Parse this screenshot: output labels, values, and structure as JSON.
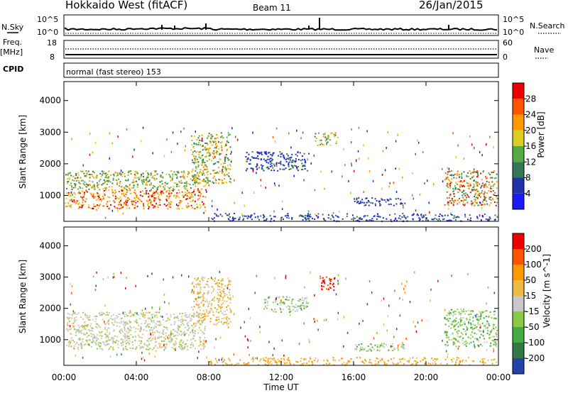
{
  "header": {
    "station": "Hokkaido West (fitACF)",
    "beam": "Beam 11",
    "date": "26/Jan/2015"
  },
  "strip": {
    "nsky_label": "N.Sky",
    "nsearch_label": "N.Search",
    "left_ticks": [
      "10^5",
      "10^0"
    ],
    "right_ticks": [
      "10^5",
      "10^0"
    ],
    "freq_label": "Freq.",
    "freq_unit": "[MHz]",
    "freq_ticks": [
      "18",
      "8"
    ],
    "nave_label": "Nave",
    "nave_ticks": [
      "60",
      "0"
    ],
    "cpid_label": "CPID",
    "cpid_value": "normal (fast stereo) 153"
  },
  "chart_data": [
    {
      "type": "heatmap",
      "name": "power",
      "ylabel": "Slant Range [km]",
      "yticks": [
        1000,
        2000,
        3000,
        4000
      ],
      "ylim": [
        180,
        4600
      ],
      "xlim": [
        0,
        24
      ],
      "xticks": [
        "00:00",
        "04:00",
        "08:00",
        "12:00",
        "16:00",
        "20:00",
        "00:00"
      ],
      "colorbar": {
        "label": "Power [dB]",
        "ticks": [
          "4",
          "8",
          "12",
          "16",
          "20",
          "24",
          "28"
        ],
        "colors": [
          "#1a1aff",
          "#2233aa",
          "#337755",
          "#55aa44",
          "#ddcc22",
          "#ff9900",
          "#ff5500",
          "#ee0000"
        ]
      },
      "regions": [
        {
          "t0": 0.0,
          "t1": 7.8,
          "r0": 600,
          "r1": 1200,
          "level": "red-orange"
        },
        {
          "t0": 0.0,
          "t1": 7.8,
          "r0": 1200,
          "r1": 1800,
          "level": "green-yellow"
        },
        {
          "t0": 7.0,
          "t1": 9.2,
          "r0": 1400,
          "r1": 3000,
          "level": "yellow-green"
        },
        {
          "t0": 13.8,
          "t1": 15.1,
          "r0": 2600,
          "r1": 3000,
          "level": "green-yellow"
        },
        {
          "t0": 10.0,
          "t1": 13.5,
          "r0": 1800,
          "r1": 2400,
          "level": "blue"
        },
        {
          "t0": 16.0,
          "t1": 18.8,
          "r0": 700,
          "r1": 950,
          "level": "blue"
        },
        {
          "t0": 21.0,
          "t1": 24.0,
          "r0": 700,
          "r1": 1800,
          "level": "red-orange-green"
        }
      ]
    },
    {
      "type": "heatmap",
      "name": "velocity",
      "ylabel": "Slant Range [km]",
      "yticks": [
        1000,
        2000,
        3000,
        4000
      ],
      "ylim": [
        180,
        4600
      ],
      "xlim": [
        0,
        24
      ],
      "xlabel": "Time UT",
      "xticks": [
        "00:00",
        "04:00",
        "08:00",
        "12:00",
        "16:00",
        "20:00",
        "00:00"
      ],
      "colorbar": {
        "label": "Velocity [m s^-1]",
        "ticks": [
          "200",
          "100",
          "50",
          "15",
          "-15",
          "-50",
          "-100",
          "-200"
        ],
        "colors": [
          "#2244aa",
          "#337744",
          "#44aa44",
          "#88cc44",
          "#c8c8c8",
          "#eebb44",
          "#ff9900",
          "#ff5500",
          "#ee0000"
        ]
      },
      "regions": [
        {
          "t0": 0.0,
          "t1": 7.8,
          "r0": 700,
          "r1": 1900,
          "level": "grey"
        },
        {
          "t0": 7.0,
          "t1": 9.2,
          "r0": 1500,
          "r1": 3000,
          "level": "grey-orange"
        },
        {
          "t0": 14.0,
          "t1": 15.0,
          "r0": 2600,
          "r1": 3050,
          "level": "red"
        },
        {
          "t0": 11.0,
          "t1": 13.5,
          "r0": 1900,
          "r1": 2400,
          "level": "grey-green"
        },
        {
          "t0": 16.0,
          "t1": 18.8,
          "r0": 650,
          "r1": 900,
          "level": "grey-green"
        },
        {
          "t0": 21.0,
          "t1": 24.0,
          "r0": 800,
          "r1": 2000,
          "level": "green-grey"
        }
      ]
    }
  ]
}
